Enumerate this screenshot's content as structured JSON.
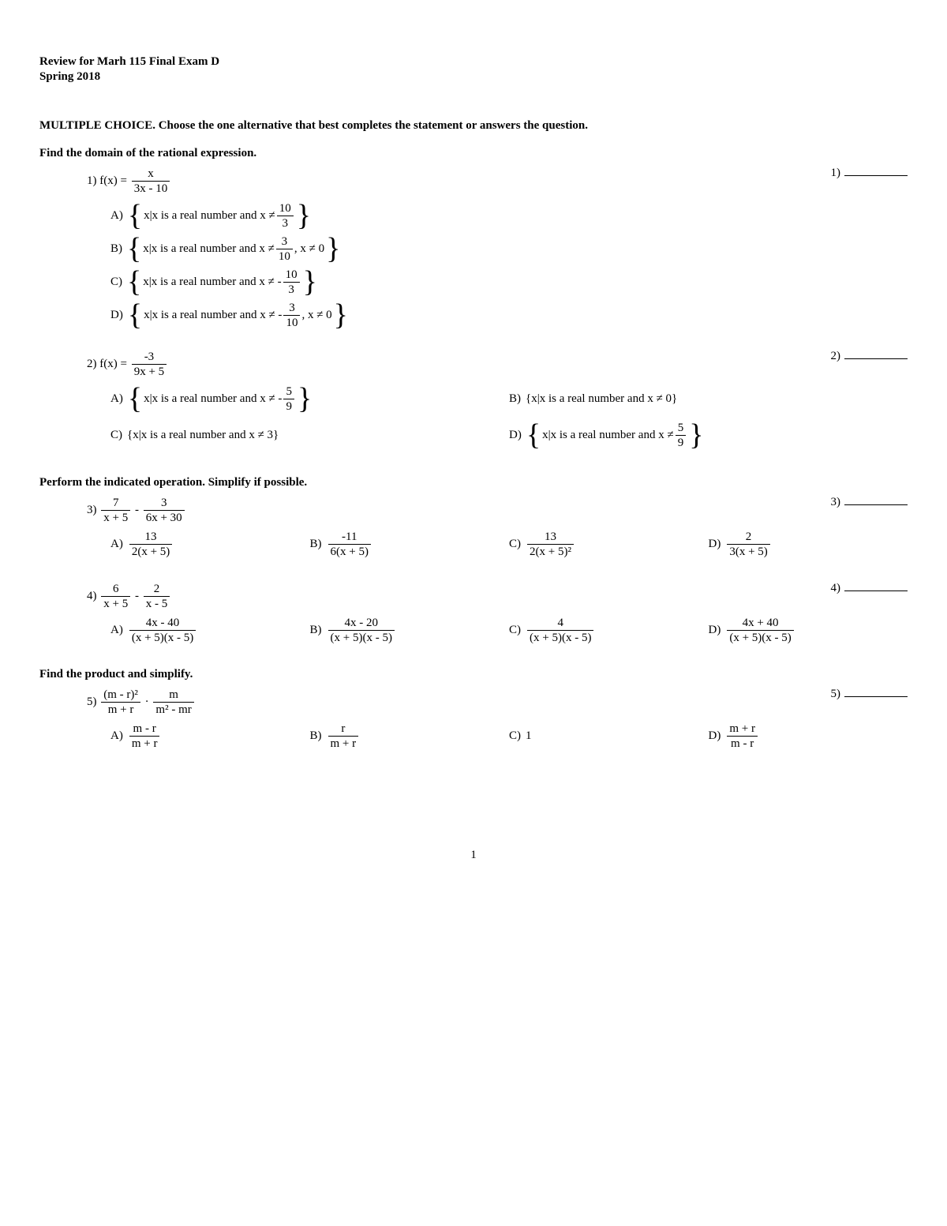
{
  "header": {
    "title": "Review for Marh 115 Final Exam D",
    "term": "Spring 2018"
  },
  "instructions": "MULTIPLE CHOICE.  Choose the one alternative that best completes the statement or answers the question.",
  "sections": [
    {
      "title": "Find the domain of the rational expression.",
      "questions": [
        "q1",
        "q2"
      ]
    },
    {
      "title": "Perform the indicated operation. Simplify if possible.",
      "questions": [
        "q3",
        "q4"
      ]
    },
    {
      "title": "Find the product and simplify.",
      "questions": [
        "q5"
      ]
    }
  ],
  "q1": {
    "num": "1)",
    "rightnum": "1)",
    "stem_prefix": "f(x) = ",
    "stem_frac": {
      "num": "x",
      "den": "3x - 10"
    },
    "choices": {
      "A": {
        "label": "A)",
        "text": "x|x is a real number and x ≠ ",
        "frac": {
          "num": "10",
          "den": "3"
        }
      },
      "B": {
        "label": "B)",
        "text": "x|x is a real number and x ≠ ",
        "frac": {
          "num": "3",
          "den": "10"
        },
        "tail": ", x ≠ 0"
      },
      "C": {
        "label": "C)",
        "text": "x|x is a real number and x ≠ - ",
        "frac": {
          "num": "10",
          "den": "3"
        }
      },
      "D": {
        "label": "D)",
        "text": "x|x is a real number and x ≠ - ",
        "frac": {
          "num": "3",
          "den": "10"
        },
        "tail": ", x ≠ 0"
      }
    }
  },
  "q2": {
    "num": "2)",
    "rightnum": "2)",
    "stem_prefix": "f(x) = ",
    "stem_frac": {
      "num": "-3",
      "den": "9x + 5"
    },
    "choices": {
      "A": {
        "label": "A)",
        "text": "x|x is a real number and x ≠ - ",
        "frac": {
          "num": "5",
          "den": "9"
        },
        "braces": true
      },
      "B": {
        "label": "B)",
        "plain": "{x|x is a real number and x ≠ 0}"
      },
      "C": {
        "label": "C)",
        "plain": "{x|x is a real number and x ≠ 3}"
      },
      "D": {
        "label": "D)",
        "text": "x|x is a real number and x ≠ ",
        "frac": {
          "num": "5",
          "den": "9"
        },
        "braces": true
      }
    }
  },
  "q3": {
    "num": "3)",
    "rightnum": "3)",
    "stem_frac1": {
      "num": "7",
      "den": "x + 5"
    },
    "stem_op": " - ",
    "stem_frac2": {
      "num": "3",
      "den": "6x + 30"
    },
    "choices": {
      "A": {
        "label": "A)",
        "frac": {
          "num": "13",
          "den": "2(x + 5)"
        }
      },
      "B": {
        "label": "B)",
        "frac": {
          "num": "-11",
          "den": "6(x + 5)"
        }
      },
      "C": {
        "label": "C)",
        "frac": {
          "num": "13",
          "den": "2(x + 5)²"
        }
      },
      "D": {
        "label": "D)",
        "frac": {
          "num": "2",
          "den": "3(x + 5)"
        }
      }
    }
  },
  "q4": {
    "num": "4)",
    "rightnum": "4)",
    "stem_frac1": {
      "num": "6",
      "den": "x + 5"
    },
    "stem_op": " - ",
    "stem_frac2": {
      "num": "2",
      "den": "x - 5"
    },
    "choices": {
      "A": {
        "label": "A)",
        "frac": {
          "num": "4x - 40",
          "den": "(x + 5)(x - 5)"
        }
      },
      "B": {
        "label": "B)",
        "frac": {
          "num": "4x - 20",
          "den": "(x + 5)(x - 5)"
        }
      },
      "C": {
        "label": "C)",
        "frac": {
          "num": "4",
          "den": "(x + 5)(x - 5)"
        }
      },
      "D": {
        "label": "D)",
        "frac": {
          "num": "4x + 40",
          "den": "(x + 5)(x - 5)"
        }
      }
    }
  },
  "q5": {
    "num": "5)",
    "rightnum": "5)",
    "stem_frac1": {
      "num": "(m - r)²",
      "den": "m + r"
    },
    "stem_op": " · ",
    "stem_frac2": {
      "num": "m",
      "den": "m² - mr"
    },
    "choices": {
      "A": {
        "label": "A)",
        "frac": {
          "num": "m - r",
          "den": "m + r"
        }
      },
      "B": {
        "label": "B)",
        "frac": {
          "num": "r",
          "den": "m + r"
        }
      },
      "C": {
        "label": "C)",
        "plain": "1"
      },
      "D": {
        "label": "D)",
        "frac": {
          "num": "m + r",
          "den": "m - r"
        }
      }
    }
  },
  "page_number": "1"
}
